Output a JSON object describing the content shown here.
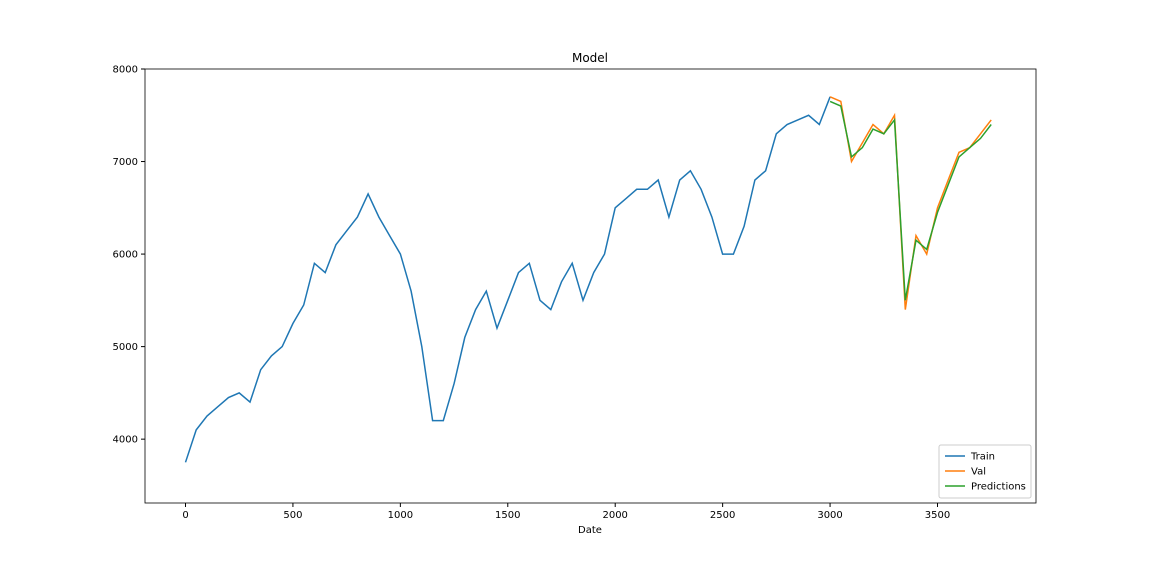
{
  "chart_data": {
    "type": "line",
    "title": "Model",
    "x_label": "Date",
    "x": [
      0,
      50,
      100,
      150,
      200,
      250,
      300,
      350,
      400,
      450,
      500,
      550,
      600,
      650,
      700,
      750,
      800,
      850,
      900,
      950,
      1000,
      1050,
      1100,
      1150,
      1200,
      1250,
      1300,
      1350,
      1400,
      1450,
      1500,
      1550,
      1600,
      1650,
      1700,
      1750,
      1800,
      1850,
      1900,
      1950,
      2000,
      2050,
      2100,
      2150,
      2200,
      2250,
      2300,
      2350,
      2400,
      2450,
      2500,
      2550,
      2600,
      2650,
      2700,
      2750,
      2800,
      2850,
      2900,
      2950,
      3000,
      3050,
      3100,
      3150,
      3200,
      3250,
      3300,
      3350,
      3400,
      3450,
      3500,
      3550,
      3600,
      3650,
      3700,
      3750
    ],
    "series": [
      {
        "name": "Train",
        "color": "#1f77b4",
        "values": [
          3750,
          4100,
          4250,
          4350,
          4450,
          4500,
          4400,
          4750,
          4900,
          5000,
          5250,
          5450,
          5900,
          5800,
          6100,
          6250,
          6400,
          6650,
          6400,
          6200,
          6000,
          5600,
          5000,
          4200,
          4200,
          4600,
          5100,
          5400,
          5600,
          5200,
          5500,
          5800,
          5900,
          5500,
          5400,
          5700,
          5900,
          5500,
          5800,
          6000,
          6500,
          6600,
          6700,
          6700,
          6800,
          6400,
          6800,
          6900,
          6700,
          6400,
          6000,
          6000,
          6300,
          6800,
          6900,
          7300,
          7400,
          7450,
          7500,
          7400,
          7700,
          null,
          null,
          null,
          null,
          null,
          null,
          null,
          null,
          null,
          null,
          null,
          null,
          null,
          null,
          null
        ]
      },
      {
        "name": "Val",
        "color": "#ff7f0e",
        "values": [
          null,
          null,
          null,
          null,
          null,
          null,
          null,
          null,
          null,
          null,
          null,
          null,
          null,
          null,
          null,
          null,
          null,
          null,
          null,
          null,
          null,
          null,
          null,
          null,
          null,
          null,
          null,
          null,
          null,
          null,
          null,
          null,
          null,
          null,
          null,
          null,
          null,
          null,
          null,
          null,
          null,
          null,
          null,
          null,
          null,
          null,
          null,
          null,
          null,
          null,
          null,
          null,
          null,
          null,
          null,
          null,
          null,
          null,
          null,
          null,
          7700,
          7650,
          7000,
          7200,
          7400,
          7300,
          7500,
          5400,
          6200,
          6000,
          6500,
          6800,
          7100,
          7150,
          7300,
          7450
        ]
      },
      {
        "name": "Predictions",
        "color": "#2ca02c",
        "values": [
          null,
          null,
          null,
          null,
          null,
          null,
          null,
          null,
          null,
          null,
          null,
          null,
          null,
          null,
          null,
          null,
          null,
          null,
          null,
          null,
          null,
          null,
          null,
          null,
          null,
          null,
          null,
          null,
          null,
          null,
          null,
          null,
          null,
          null,
          null,
          null,
          null,
          null,
          null,
          null,
          null,
          null,
          null,
          null,
          null,
          null,
          null,
          null,
          null,
          null,
          null,
          null,
          null,
          null,
          null,
          null,
          null,
          null,
          null,
          null,
          7650,
          7600,
          7050,
          7150,
          7350,
          7300,
          7450,
          5500,
          6150,
          6050,
          6450,
          6750,
          7050,
          7150,
          7250,
          7400
        ]
      }
    ],
    "xlim": [
      -188.5,
      3958.5
    ],
    "xticks": [
      0,
      500,
      1000,
      1500,
      2000,
      2500,
      3000,
      3500
    ],
    "ylim": [
      3310,
      8000
    ],
    "yticks": [
      4000,
      5000,
      6000,
      7000,
      8000
    ],
    "legend": "lower right"
  }
}
